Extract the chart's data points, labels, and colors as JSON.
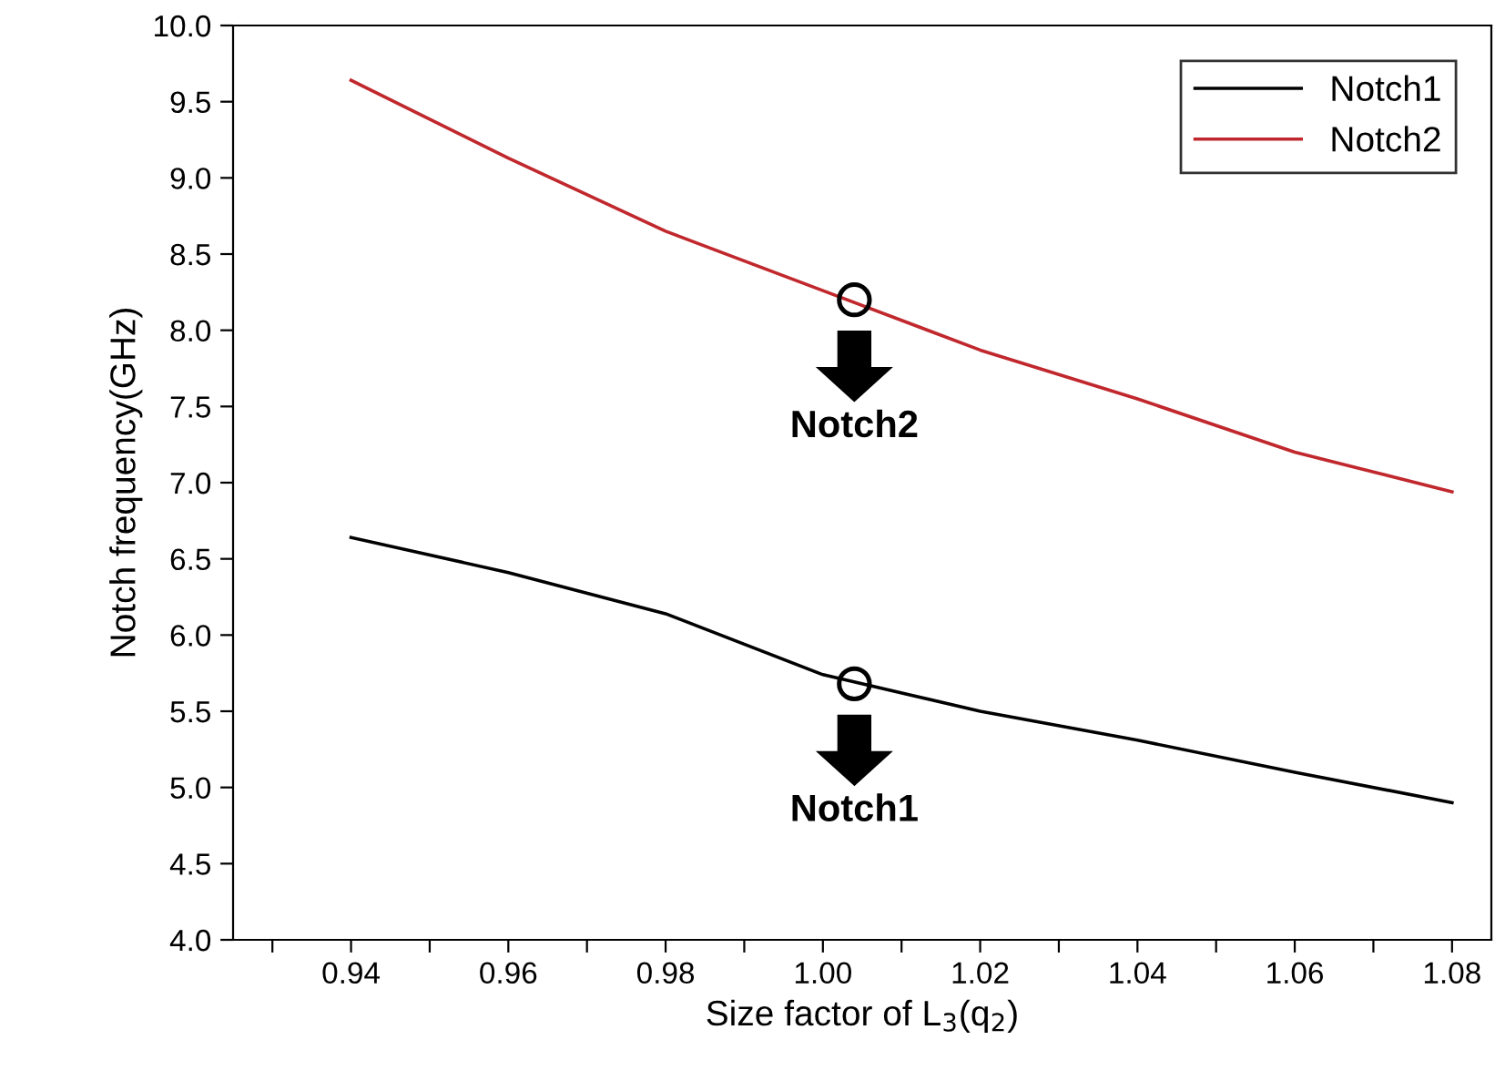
{
  "chart_data": {
    "type": "line",
    "xlabel": "Size factor of L$_{3}$(q$_{2}$)",
    "ylabel": "Notch frequency(GHz)",
    "x": [
      0.94,
      0.96,
      0.98,
      1.0,
      1.02,
      1.04,
      1.06,
      1.08
    ],
    "series": [
      {
        "name": "Notch1",
        "color": "#000000",
        "values": [
          6.64,
          6.41,
          6.14,
          5.74,
          5.5,
          5.31,
          5.1,
          4.9
        ]
      },
      {
        "name": "Notch2",
        "color": "#c0282d",
        "values": [
          9.64,
          9.13,
          8.65,
          8.26,
          7.87,
          7.55,
          7.2,
          6.94
        ]
      }
    ],
    "annotations": [
      {
        "text": "Notch2",
        "x": 1.004,
        "y": 8.2
      },
      {
        "text": "Notch1",
        "x": 1.004,
        "y": 5.68
      }
    ],
    "xlim": [
      0.925,
      1.085
    ],
    "xticks": [
      {
        "value": 0.93,
        "label": null
      },
      {
        "value": 0.94,
        "label": "0.94"
      },
      {
        "value": 0.95,
        "label": null
      },
      {
        "value": 0.96,
        "label": "0.96"
      },
      {
        "value": 0.97,
        "label": null
      },
      {
        "value": 0.98,
        "label": "0.98"
      },
      {
        "value": 0.99,
        "label": null
      },
      {
        "value": 1.0,
        "label": "1.00"
      },
      {
        "value": 1.01,
        "label": null
      },
      {
        "value": 1.02,
        "label": "1.02"
      },
      {
        "value": 1.03,
        "label": null
      },
      {
        "value": 1.04,
        "label": "1.04"
      },
      {
        "value": 1.05,
        "label": null
      },
      {
        "value": 1.06,
        "label": "1.06"
      },
      {
        "value": 1.07,
        "label": null
      },
      {
        "value": 1.08,
        "label": "1.08"
      }
    ],
    "ylim": [
      4.0,
      10.0
    ],
    "yticks": [
      {
        "value": 4.0,
        "label": "4.0"
      },
      {
        "value": 4.5,
        "label": "4.5"
      },
      {
        "value": 5.0,
        "label": "5.0"
      },
      {
        "value": 5.5,
        "label": "5.5"
      },
      {
        "value": 6.0,
        "label": "6.0"
      },
      {
        "value": 6.5,
        "label": "6.5"
      },
      {
        "value": 7.0,
        "label": "7.0"
      },
      {
        "value": 7.5,
        "label": "7.5"
      },
      {
        "value": 8.0,
        "label": "8.0"
      },
      {
        "value": 8.5,
        "label": "8.5"
      },
      {
        "value": 9.0,
        "label": "9.0"
      },
      {
        "value": 9.5,
        "label": "9.5"
      },
      {
        "value": 10.0,
        "label": "10.0"
      }
    ],
    "legend": "top right",
    "grid": false
  }
}
